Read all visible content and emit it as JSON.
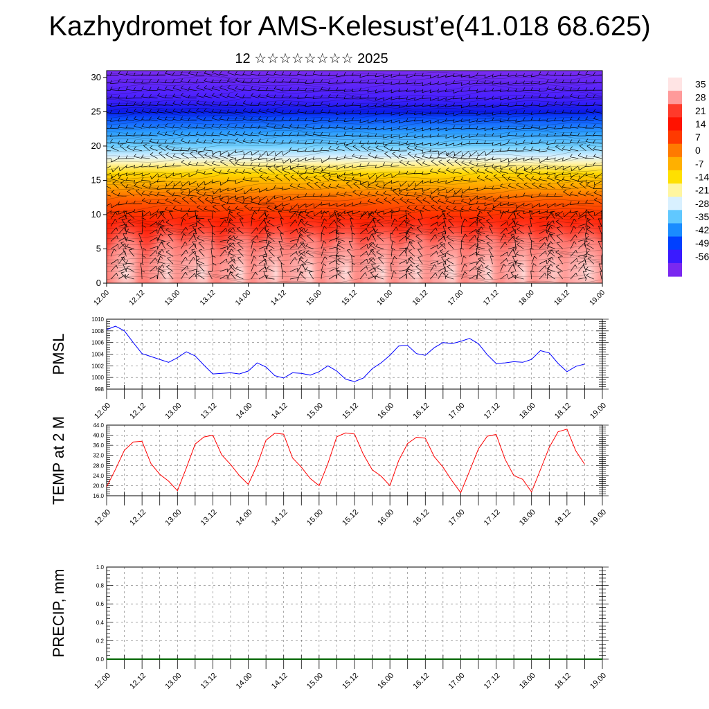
{
  "header": {
    "title": "Kazhydromet for AMS-Kelesust’e(41.018 68.625)",
    "subtitle": "12 ☆☆☆☆☆☆☆☆ 2025"
  },
  "chart_data": [
    {
      "type": "heatmap",
      "title": "",
      "subtitle": "12 ☆☆☆☆☆☆☆☆ 2025",
      "x_tick_labels": [
        "12.00",
        "12.12",
        "13.00",
        "13.12",
        "14.00",
        "14.12",
        "15.00",
        "15.12",
        "16.00",
        "16.12",
        "17.00",
        "17.12",
        "18.00",
        "18.12",
        "19.00"
      ],
      "y_ticks": [
        0,
        5,
        10,
        15,
        20,
        25,
        30
      ],
      "ylim": [
        0,
        31
      ],
      "xlim": [
        0,
        14
      ],
      "colorbar_labels": [
        "35",
        "28",
        "21",
        "14",
        "7",
        "0",
        "-7",
        "-14",
        "-21",
        "-28",
        "-35",
        "-42",
        "-49",
        "-56"
      ],
      "colorbar_colors": [
        "#ffe4e4",
        "#ff9a9a",
        "#ff3a2a",
        "#ff1200",
        "#ff3a00",
        "#ff7a00",
        "#ffb000",
        "#ffe000",
        "#fff6a0",
        "#d8f0ff",
        "#60c8ff",
        "#1a8cff",
        "#0040ff",
        "#3a1aff",
        "#7a28f0"
      ],
      "profile": [
        {
          "z": 0,
          "c": "#ff1a00"
        },
        {
          "z": 5,
          "c": "#ff1400"
        },
        {
          "z": 9,
          "c": "#ff2000"
        },
        {
          "z": 12,
          "c": "#ff5a00"
        },
        {
          "z": 14,
          "c": "#ffa000"
        },
        {
          "z": 16,
          "c": "#ffd800"
        },
        {
          "z": 17.5,
          "c": "#fff4b0"
        },
        {
          "z": 18.5,
          "c": "#d8f0ff"
        },
        {
          "z": 20,
          "c": "#70d0ff"
        },
        {
          "z": 22,
          "c": "#2a9cff"
        },
        {
          "z": 24,
          "c": "#0a50ff"
        },
        {
          "z": 25,
          "c": "#0a1ae8"
        },
        {
          "z": 27,
          "c": "#4820ff"
        },
        {
          "z": 31,
          "c": "#7a2cf0"
        }
      ],
      "warm_blob_centers": [
        0.55,
        1.75,
        2.7,
        3.8,
        4.8,
        5.75,
        6.75,
        7.8,
        8.8,
        9.75,
        10.8,
        11.8,
        12.75,
        13.6
      ]
    },
    {
      "type": "line",
      "ylabel": "PMSL",
      "x_tick_labels": [
        "12.00",
        "12.12",
        "13.00",
        "13.12",
        "14.00",
        "14.12",
        "15.00",
        "15.12",
        "16.00",
        "16.12",
        "17.00",
        "17.12",
        "18.00",
        "18.12",
        "19.00"
      ],
      "y_ticks": [
        "998",
        "1000",
        "1002",
        "1004",
        "1006",
        "1008",
        "1010"
      ],
      "ylim": [
        998,
        1010
      ],
      "color": "#0000ff",
      "x": [
        0,
        0.25,
        0.5,
        0.75,
        1,
        1.25,
        1.5,
        1.75,
        2,
        2.25,
        2.5,
        2.75,
        3,
        3.25,
        3.5,
        3.75,
        4,
        4.25,
        4.5,
        4.75,
        5,
        5.25,
        5.5,
        5.75,
        6,
        6.25,
        6.5,
        6.75,
        7,
        7.25,
        7.5,
        7.75,
        8,
        8.25,
        8.5,
        8.75,
        9,
        9.25,
        9.5,
        9.75,
        10,
        10.25,
        10.5,
        10.75,
        11,
        11.25,
        11.5,
        11.75,
        12,
        12.25,
        12.5,
        12.75,
        13,
        13.25,
        13.5
      ],
      "values": [
        1008.2,
        1008.8,
        1008.0,
        1006.0,
        1004.1,
        1003.6,
        1003.1,
        1002.6,
        1003.4,
        1004.4,
        1003.7,
        1002.1,
        1000.6,
        1000.7,
        1000.8,
        1000.6,
        1001.1,
        1002.5,
        1001.8,
        1000.3,
        999.9,
        1000.8,
        1000.7,
        1000.4,
        1001.0,
        1002.0,
        1001.1,
        999.7,
        999.3,
        999.9,
        1001.5,
        1002.5,
        1003.8,
        1005.4,
        1005.5,
        1004.1,
        1003.8,
        1005.1,
        1006.0,
        1005.8,
        1006.2,
        1006.7,
        1005.8,
        1003.9,
        1002.4,
        1002.5,
        1002.7,
        1002.6,
        1003.1,
        1004.6,
        1004.2,
        1002.4,
        1001.0,
        1001.9,
        1002.3
      ]
    },
    {
      "type": "line",
      "ylabel": "TEMP at 2 M",
      "x_tick_labels": [
        "12.00",
        "12.12",
        "13.00",
        "13.12",
        "14.00",
        "14.12",
        "15.00",
        "15.12",
        "16.00",
        "16.12",
        "17.00",
        "17.12",
        "18.00",
        "18.12",
        "19.00"
      ],
      "y_ticks": [
        "16.0",
        "20.0",
        "24.0",
        "28.0",
        "32.0",
        "36.0",
        "40.0",
        "44.0"
      ],
      "ylim": [
        16,
        44
      ],
      "color": "#ff0000",
      "x": [
        0,
        0.25,
        0.5,
        0.75,
        1,
        1.25,
        1.5,
        1.75,
        2,
        2.25,
        2.5,
        2.75,
        3,
        3.25,
        3.5,
        3.75,
        4,
        4.25,
        4.5,
        4.75,
        5,
        5.25,
        5.5,
        5.75,
        6,
        6.25,
        6.5,
        6.75,
        7,
        7.25,
        7.5,
        7.75,
        8,
        8.25,
        8.5,
        8.75,
        9,
        9.25,
        9.5,
        9.75,
        10,
        10.25,
        10.5,
        10.75,
        11,
        11.25,
        11.5,
        11.75,
        12,
        12.25,
        12.5,
        12.75,
        13,
        13.25,
        13.5
      ],
      "values": [
        19.5,
        26.5,
        34.0,
        37.3,
        37.6,
        28.8,
        24.5,
        21.8,
        18.0,
        27.0,
        36.5,
        39.3,
        40.0,
        32.2,
        28.4,
        24.0,
        20.5,
        28.2,
        38.0,
        40.8,
        40.4,
        31.0,
        27.3,
        22.8,
        20.0,
        28.8,
        39.4,
        40.9,
        40.5,
        32.4,
        26.3,
        23.8,
        20.0,
        30.0,
        36.7,
        39.2,
        38.8,
        31.5,
        27.3,
        22.0,
        17.2,
        25.8,
        34.6,
        39.6,
        40.3,
        30.5,
        24.0,
        22.5,
        17.5,
        26.3,
        35.2,
        41.4,
        42.4,
        33.8,
        28.5
      ]
    },
    {
      "type": "line",
      "ylabel": "PRECIP, mm",
      "x_tick_labels": [
        "12.00",
        "12.12",
        "13.00",
        "13.12",
        "14.00",
        "14.12",
        "15.00",
        "15.12",
        "16.00",
        "16.12",
        "17.00",
        "17.12",
        "18.00",
        "18.12",
        "19.00"
      ],
      "y_ticks": [
        "0.0",
        "0.2",
        "0.4",
        "0.6",
        "0.8",
        "1.0"
      ],
      "ylim": [
        0,
        1
      ],
      "color": "#006400",
      "x": [
        0,
        14
      ],
      "values": [
        0,
        0
      ]
    }
  ]
}
